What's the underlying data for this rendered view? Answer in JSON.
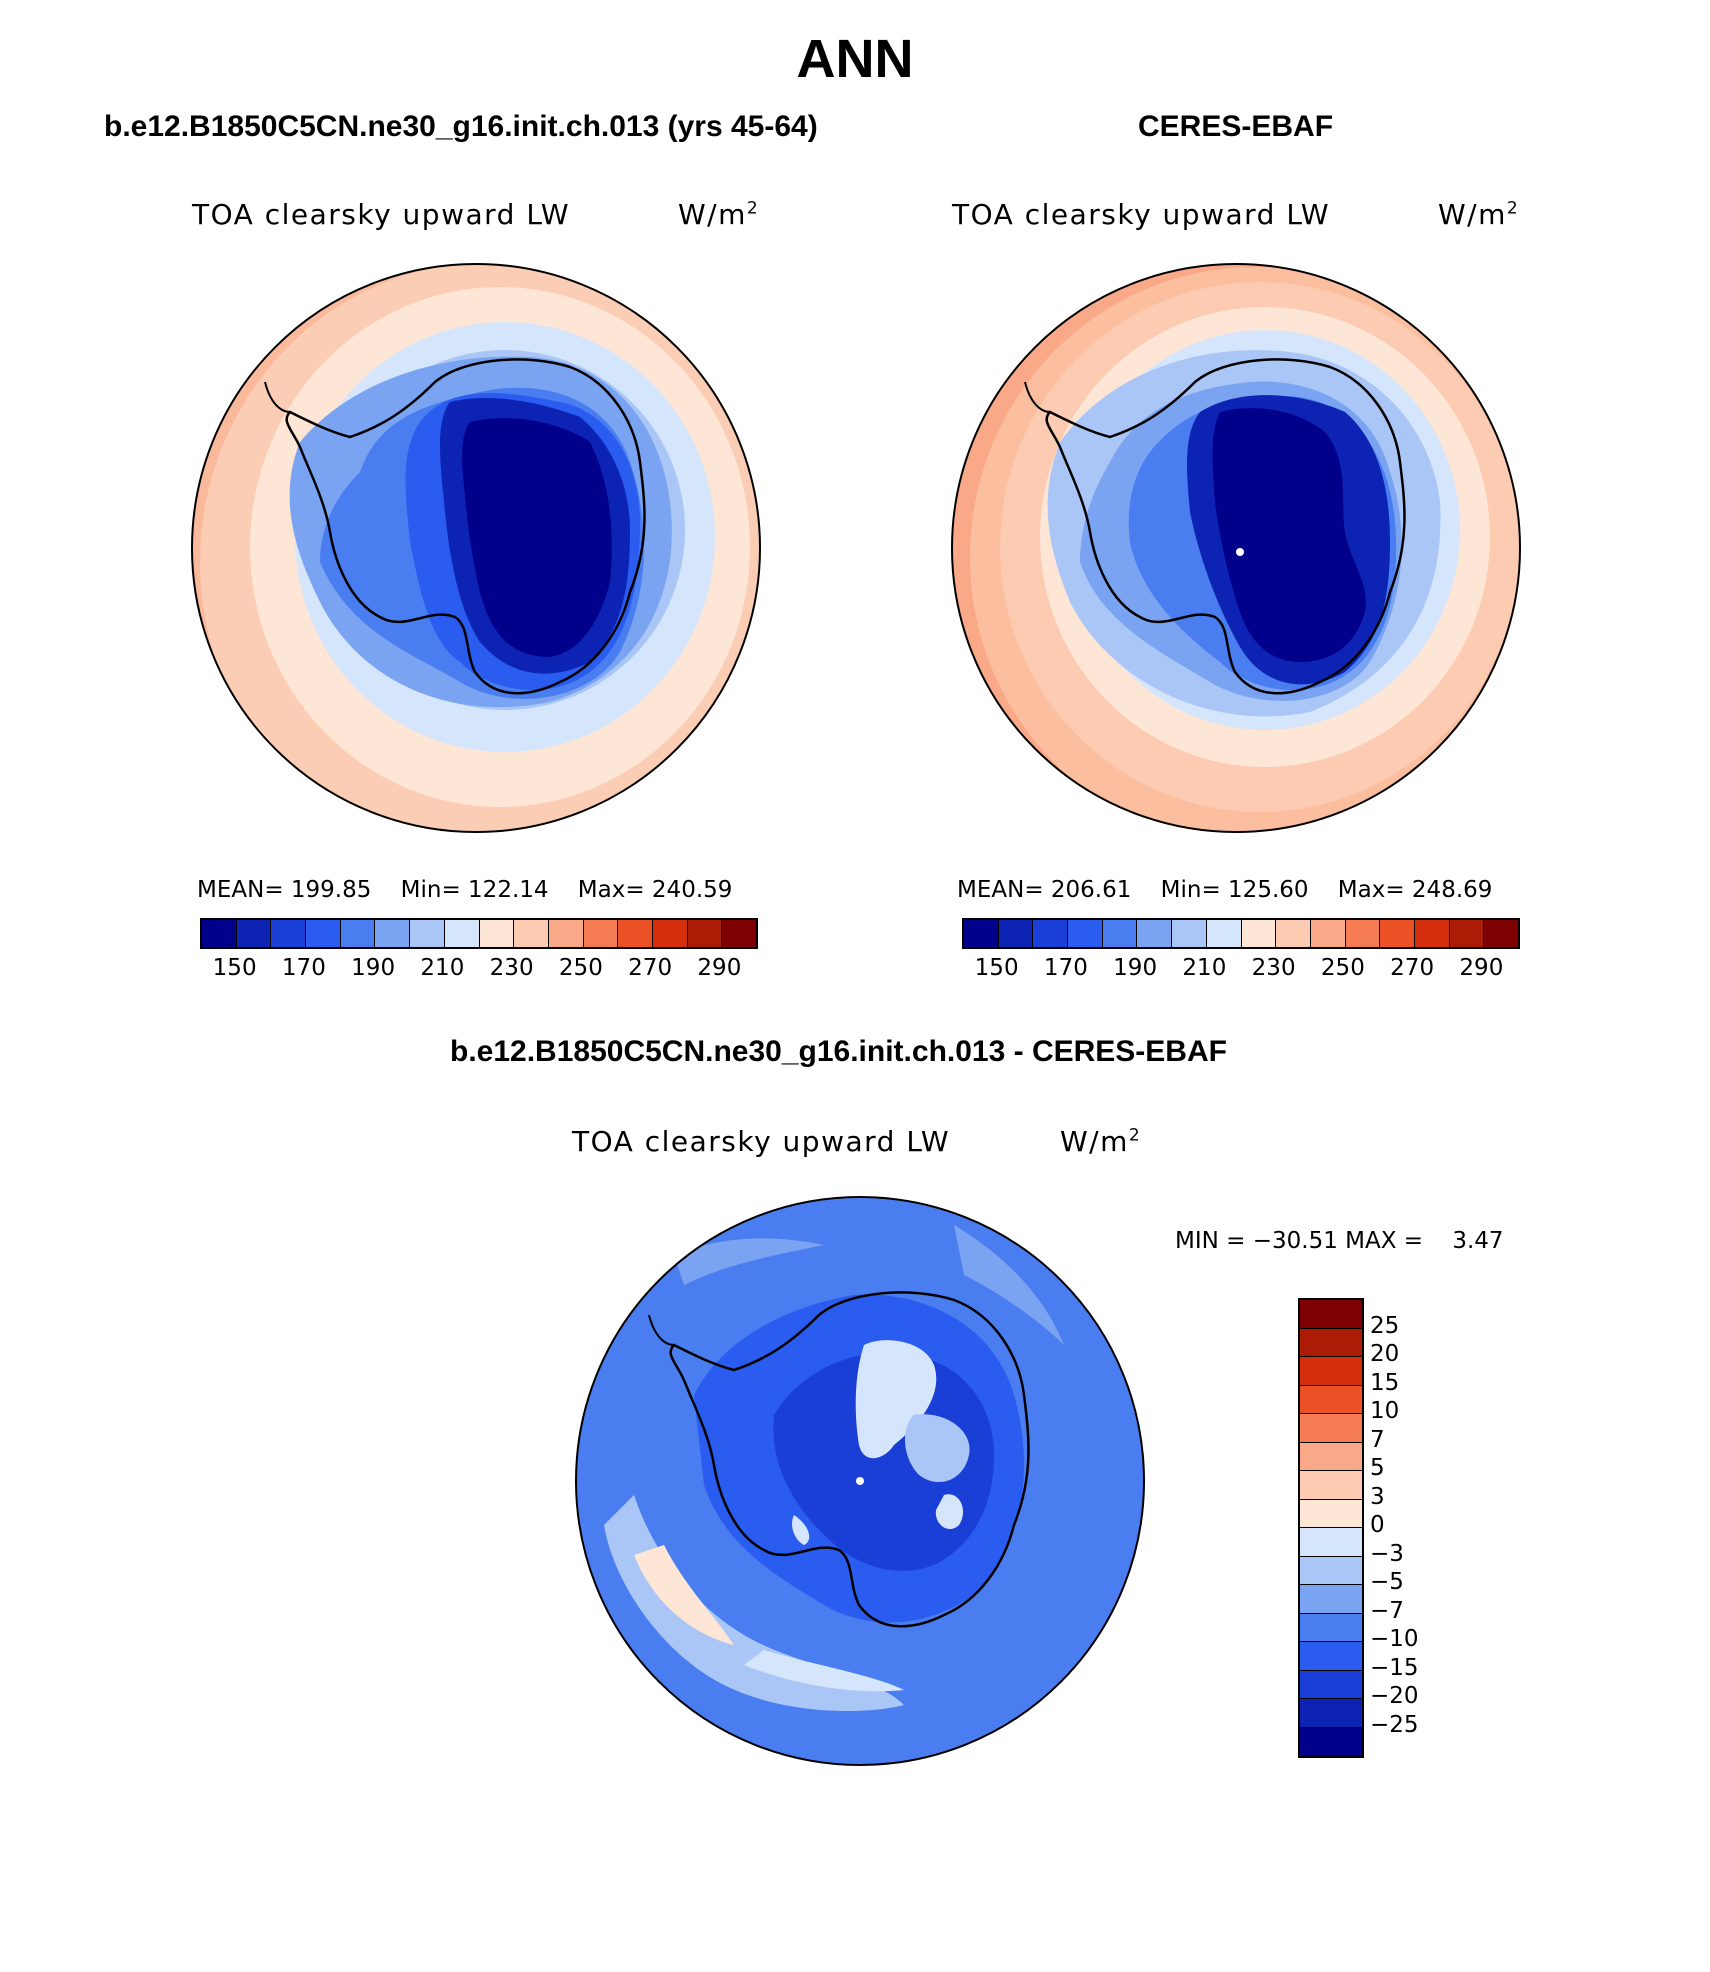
{
  "title": "ANN",
  "panels": [
    {
      "title": "b.e12.B1850C5CN.ne30_g16.init.ch.013 (yrs 45-64)",
      "field_label": "TOA clearsky upward LW",
      "units_base": "W/m",
      "units_sup": "2",
      "stats": {
        "mean_label": "MEAN=",
        "mean": "199.85",
        "min_label": "Min=",
        "min": "122.14",
        "max_label": "Max=",
        "max": "240.59"
      }
    },
    {
      "title": "CERES-EBAF",
      "field_label": "TOA clearsky upward LW",
      "units_base": "W/m",
      "units_sup": "2",
      "stats": {
        "mean_label": "MEAN=",
        "mean": "206.61",
        "min_label": "Min=",
        "min": "125.60",
        "max_label": "Max=",
        "max": "248.69"
      }
    }
  ],
  "abs_colorbar": {
    "ticks": [
      "150",
      "170",
      "190",
      "210",
      "230",
      "250",
      "270",
      "290"
    ],
    "colors": [
      "#00008b",
      "#0d23b4",
      "#1a3fd6",
      "#2a5cf0",
      "#4a7ef0",
      "#7aa3f2",
      "#a9c6f6",
      "#d5e5fb",
      "#fde6d6",
      "#fccbb1",
      "#f9a987",
      "#f47b52",
      "#ec5125",
      "#d42e0c",
      "#ac1b06",
      "#7e0000"
    ]
  },
  "diff_panel": {
    "title": "b.e12.B1850C5CN.ne30_g16.init.ch.013 - CERES-EBAF",
    "field_label": "TOA clearsky upward LW",
    "units_base": "W/m",
    "units_sup": "2",
    "min_max": "MIN = −30.51 MAX =    3.47",
    "colorbar_ticks": [
      "25",
      "20",
      "15",
      "10",
      "7",
      "5",
      "3",
      "0",
      "−3",
      "−5",
      "−7",
      "−10",
      "−15",
      "−20",
      "−25"
    ],
    "colorbar_colors": [
      "#7e0000",
      "#ac1b06",
      "#d42e0c",
      "#ec5125",
      "#f47b52",
      "#f9a987",
      "#fccbb1",
      "#fde6d6",
      "#d5e5fb",
      "#a9c6f6",
      "#7aa3f2",
      "#4a7ef0",
      "#2a5cf0",
      "#1a3fd6",
      "#0d23b4",
      "#00008b"
    ]
  }
}
